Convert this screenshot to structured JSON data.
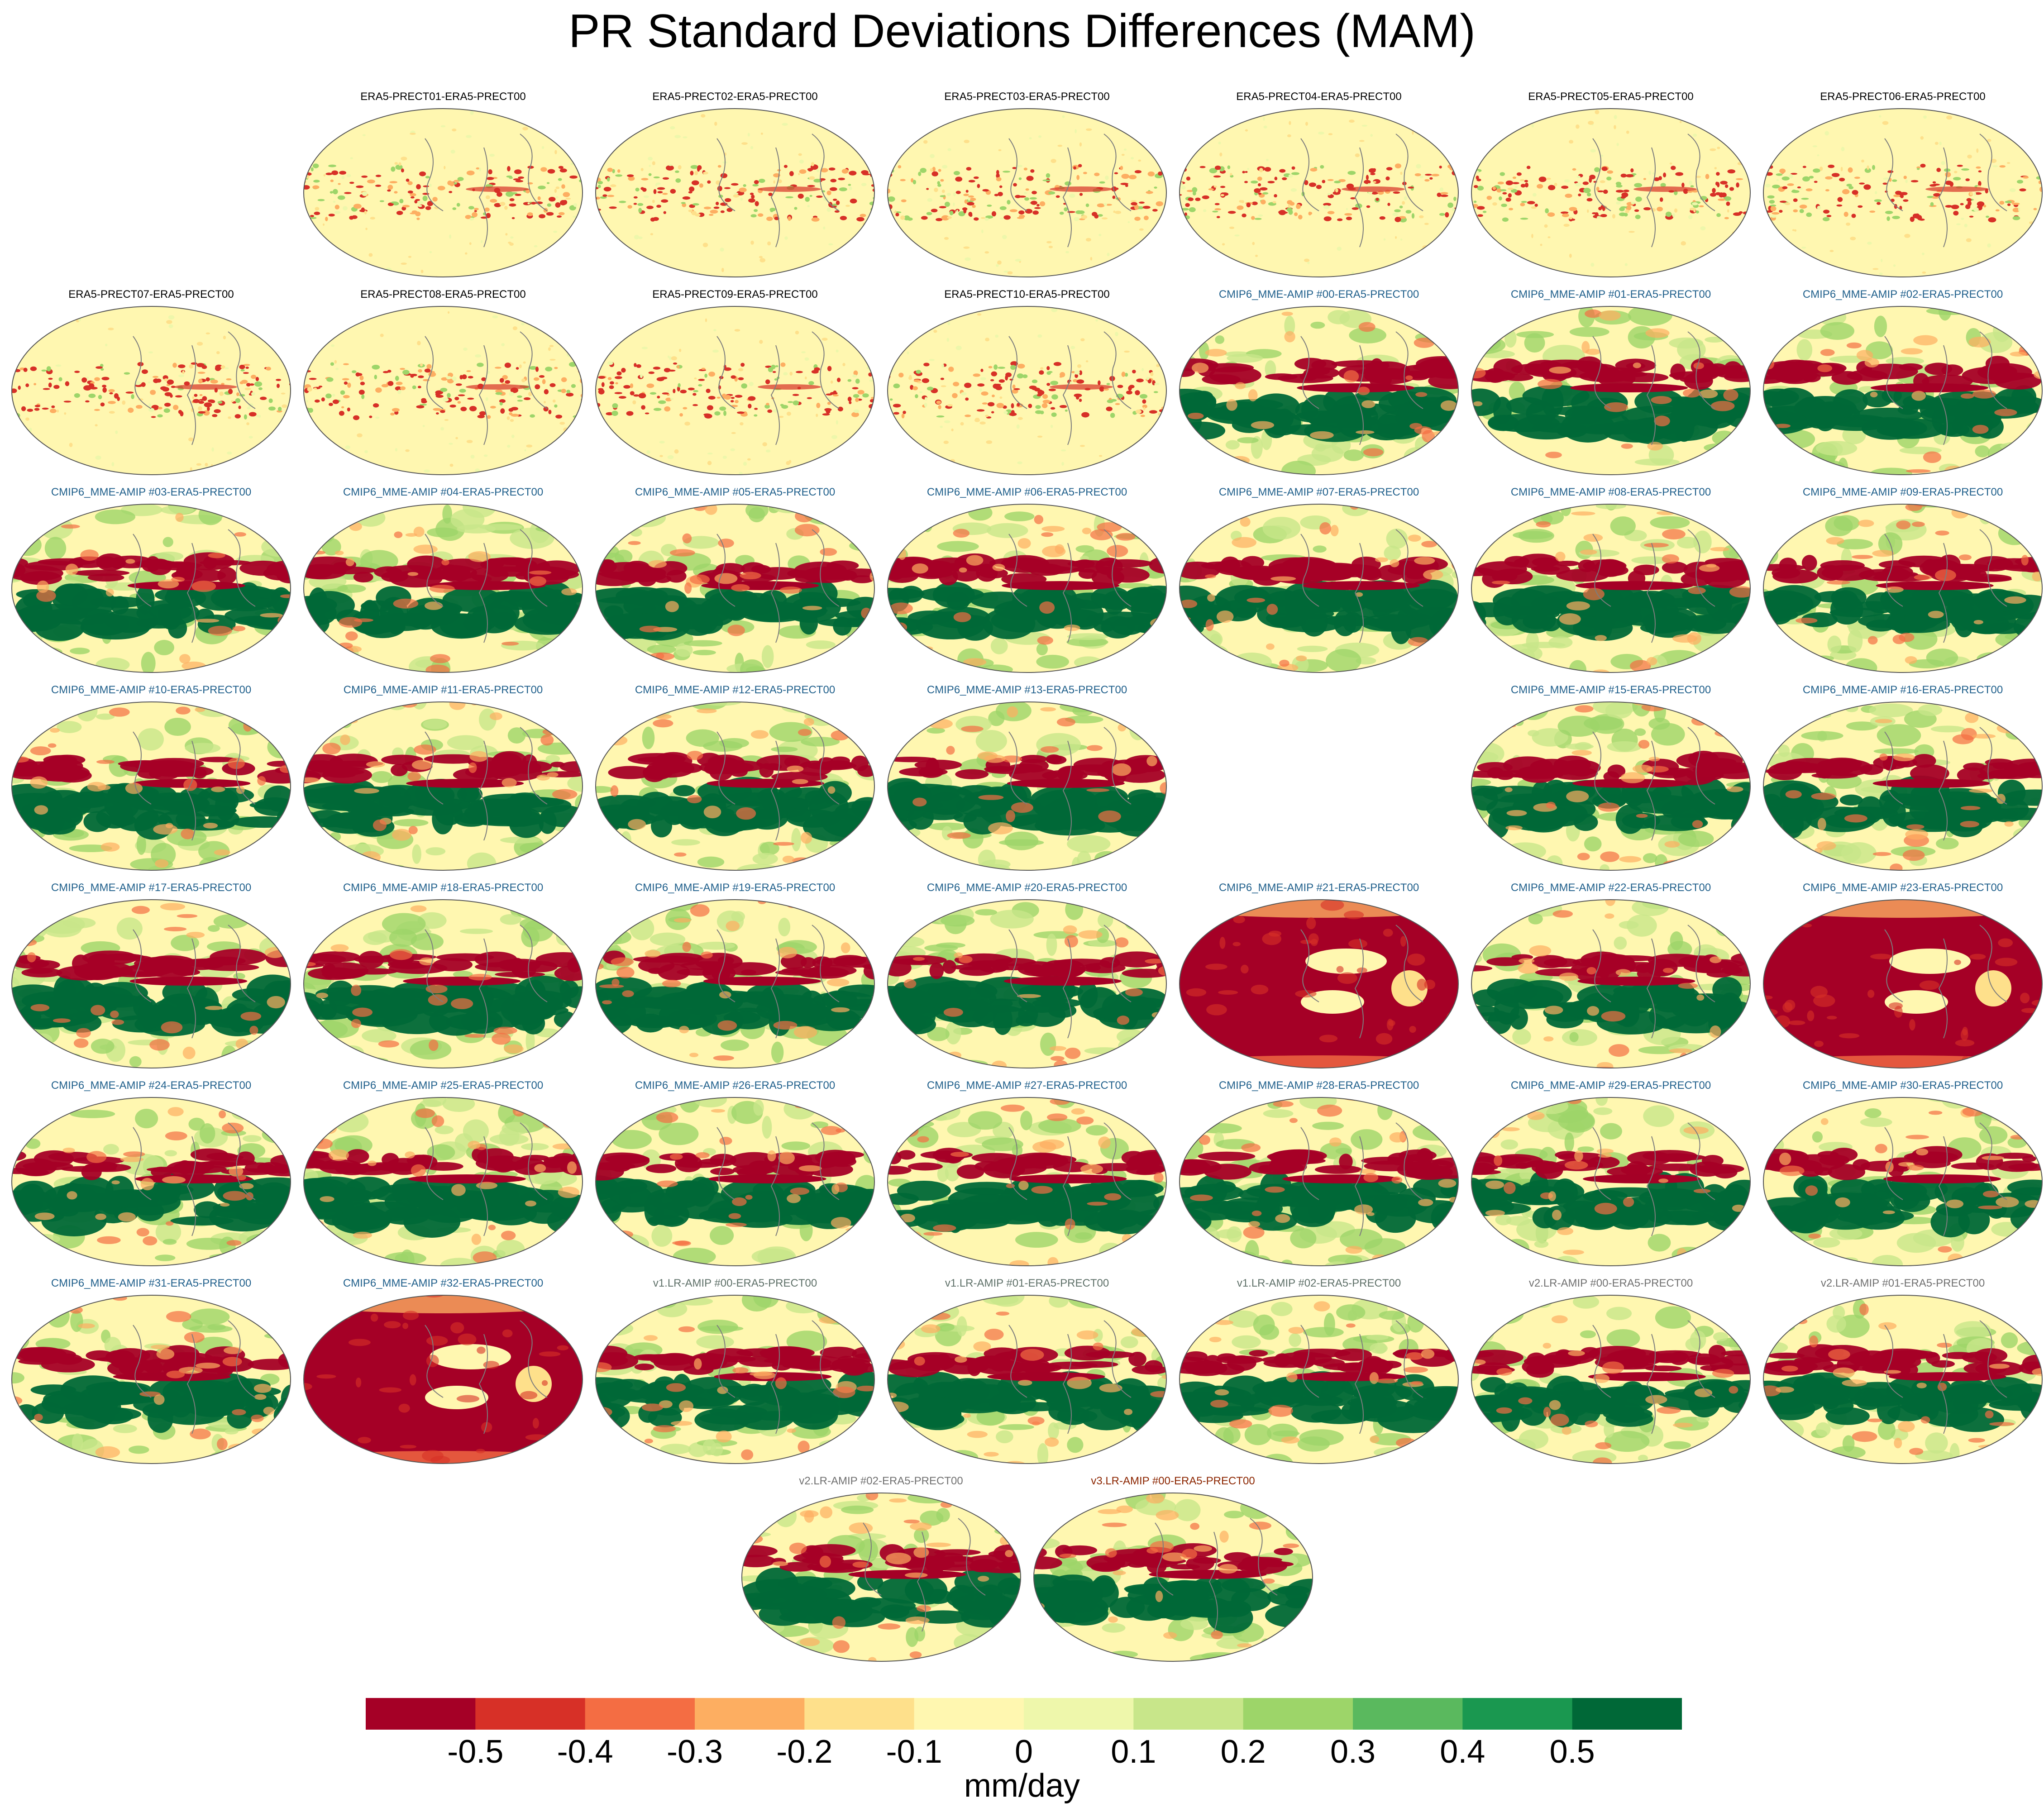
{
  "title": "PR Standard Deviations Differences (MAM)",
  "colorbar": {
    "units": "mm/day",
    "colors": [
      "#a50026",
      "#d73027",
      "#f46d43",
      "#fdae61",
      "#fee08b",
      "#fff7b0",
      "#eef7ab",
      "#c8e68a",
      "#9dd569",
      "#5ab95e",
      "#1a9850",
      "#006837"
    ],
    "ticks": [
      "-0.5",
      "-0.4",
      "-0.3",
      "-0.2",
      "-0.1",
      "0",
      "0.1",
      "0.2",
      "0.3",
      "0.4",
      "0.5"
    ]
  },
  "chart_data": {
    "type": "heatmap",
    "title": "PR Standard Deviations Differences (MAM)",
    "colorbar_label": "mm/day",
    "levels": [
      -0.5,
      -0.4,
      -0.3,
      -0.2,
      -0.1,
      0,
      0.1,
      0.2,
      0.3,
      0.4,
      0.5
    ],
    "panels": [
      {
        "label": "ERA5-PRECT01-ERA5-PRECT00",
        "group": "era5",
        "row": 0,
        "col": 1,
        "pattern": "era5"
      },
      {
        "label": "ERA5-PRECT02-ERA5-PRECT00",
        "group": "era5",
        "row": 0,
        "col": 2,
        "pattern": "era5"
      },
      {
        "label": "ERA5-PRECT03-ERA5-PRECT00",
        "group": "era5",
        "row": 0,
        "col": 3,
        "pattern": "era5"
      },
      {
        "label": "ERA5-PRECT04-ERA5-PRECT00",
        "group": "era5",
        "row": 0,
        "col": 4,
        "pattern": "era5"
      },
      {
        "label": "ERA5-PRECT05-ERA5-PRECT00",
        "group": "era5",
        "row": 0,
        "col": 5,
        "pattern": "era5"
      },
      {
        "label": "ERA5-PRECT06-ERA5-PRECT00",
        "group": "era5",
        "row": 0,
        "col": 6,
        "pattern": "era5"
      },
      {
        "label": "ERA5-PRECT07-ERA5-PRECT00",
        "group": "era5",
        "row": 1,
        "col": 0,
        "pattern": "era5"
      },
      {
        "label": "ERA5-PRECT08-ERA5-PRECT00",
        "group": "era5",
        "row": 1,
        "col": 1,
        "pattern": "era5"
      },
      {
        "label": "ERA5-PRECT09-ERA5-PRECT00",
        "group": "era5",
        "row": 1,
        "col": 2,
        "pattern": "era5"
      },
      {
        "label": "ERA5-PRECT10-ERA5-PRECT00",
        "group": "era5",
        "row": 1,
        "col": 3,
        "pattern": "era5"
      },
      {
        "label": "CMIP6_MME-AMIP  #00-ERA5-PRECT00",
        "group": "cmip6",
        "row": 1,
        "col": 4,
        "pattern": "model"
      },
      {
        "label": "CMIP6_MME-AMIP  #01-ERA5-PRECT00",
        "group": "cmip6",
        "row": 1,
        "col": 5,
        "pattern": "model"
      },
      {
        "label": "CMIP6_MME-AMIP  #02-ERA5-PRECT00",
        "group": "cmip6",
        "row": 1,
        "col": 6,
        "pattern": "model"
      },
      {
        "label": "CMIP6_MME-AMIP  #03-ERA5-PRECT00",
        "group": "cmip6",
        "row": 2,
        "col": 0,
        "pattern": "model"
      },
      {
        "label": "CMIP6_MME-AMIP  #04-ERA5-PRECT00",
        "group": "cmip6",
        "row": 2,
        "col": 1,
        "pattern": "model"
      },
      {
        "label": "CMIP6_MME-AMIP  #05-ERA5-PRECT00",
        "group": "cmip6",
        "row": 2,
        "col": 2,
        "pattern": "model"
      },
      {
        "label": "CMIP6_MME-AMIP  #06-ERA5-PRECT00",
        "group": "cmip6",
        "row": 2,
        "col": 3,
        "pattern": "model"
      },
      {
        "label": "CMIP6_MME-AMIP  #07-ERA5-PRECT00",
        "group": "cmip6",
        "row": 2,
        "col": 4,
        "pattern": "model"
      },
      {
        "label": "CMIP6_MME-AMIP  #08-ERA5-PRECT00",
        "group": "cmip6",
        "row": 2,
        "col": 5,
        "pattern": "model"
      },
      {
        "label": "CMIP6_MME-AMIP  #09-ERA5-PRECT00",
        "group": "cmip6",
        "row": 2,
        "col": 6,
        "pattern": "model"
      },
      {
        "label": "CMIP6_MME-AMIP  #10-ERA5-PRECT00",
        "group": "cmip6",
        "row": 3,
        "col": 0,
        "pattern": "model"
      },
      {
        "label": "CMIP6_MME-AMIP  #11-ERA5-PRECT00",
        "group": "cmip6",
        "row": 3,
        "col": 1,
        "pattern": "model"
      },
      {
        "label": "CMIP6_MME-AMIP  #12-ERA5-PRECT00",
        "group": "cmip6",
        "row": 3,
        "col": 2,
        "pattern": "model"
      },
      {
        "label": "CMIP6_MME-AMIP  #13-ERA5-PRECT00",
        "group": "cmip6",
        "row": 3,
        "col": 3,
        "pattern": "model"
      },
      {
        "label": "CMIP6_MME-AMIP  #15-ERA5-PRECT00",
        "group": "cmip6",
        "row": 3,
        "col": 5,
        "pattern": "model"
      },
      {
        "label": "CMIP6_MME-AMIP  #16-ERA5-PRECT00",
        "group": "cmip6",
        "row": 3,
        "col": 6,
        "pattern": "model"
      },
      {
        "label": "CMIP6_MME-AMIP  #17-ERA5-PRECT00",
        "group": "cmip6",
        "row": 4,
        "col": 0,
        "pattern": "model"
      },
      {
        "label": "CMIP6_MME-AMIP  #18-ERA5-PRECT00",
        "group": "cmip6",
        "row": 4,
        "col": 1,
        "pattern": "model"
      },
      {
        "label": "CMIP6_MME-AMIP  #19-ERA5-PRECT00",
        "group": "cmip6",
        "row": 4,
        "col": 2,
        "pattern": "model"
      },
      {
        "label": "CMIP6_MME-AMIP  #20-ERA5-PRECT00",
        "group": "cmip6",
        "row": 4,
        "col": 3,
        "pattern": "model"
      },
      {
        "label": "CMIP6_MME-AMIP  #21-ERA5-PRECT00",
        "group": "cmip6",
        "row": 4,
        "col": 4,
        "pattern": "red"
      },
      {
        "label": "CMIP6_MME-AMIP  #22-ERA5-PRECT00",
        "group": "cmip6",
        "row": 4,
        "col": 5,
        "pattern": "model"
      },
      {
        "label": "CMIP6_MME-AMIP  #23-ERA5-PRECT00",
        "group": "cmip6",
        "row": 4,
        "col": 6,
        "pattern": "red"
      },
      {
        "label": "CMIP6_MME-AMIP  #24-ERA5-PRECT00",
        "group": "cmip6",
        "row": 5,
        "col": 0,
        "pattern": "model"
      },
      {
        "label": "CMIP6_MME-AMIP  #25-ERA5-PRECT00",
        "group": "cmip6",
        "row": 5,
        "col": 1,
        "pattern": "model"
      },
      {
        "label": "CMIP6_MME-AMIP  #26-ERA5-PRECT00",
        "group": "cmip6",
        "row": 5,
        "col": 2,
        "pattern": "model"
      },
      {
        "label": "CMIP6_MME-AMIP  #27-ERA5-PRECT00",
        "group": "cmip6",
        "row": 5,
        "col": 3,
        "pattern": "model"
      },
      {
        "label": "CMIP6_MME-AMIP  #28-ERA5-PRECT00",
        "group": "cmip6",
        "row": 5,
        "col": 4,
        "pattern": "model"
      },
      {
        "label": "CMIP6_MME-AMIP  #29-ERA5-PRECT00",
        "group": "cmip6",
        "row": 5,
        "col": 5,
        "pattern": "model"
      },
      {
        "label": "CMIP6_MME-AMIP  #30-ERA5-PRECT00",
        "group": "cmip6",
        "row": 5,
        "col": 6,
        "pattern": "model"
      },
      {
        "label": "CMIP6_MME-AMIP  #31-ERA5-PRECT00",
        "group": "cmip6",
        "row": 6,
        "col": 0,
        "pattern": "model"
      },
      {
        "label": "CMIP6_MME-AMIP  #32-ERA5-PRECT00",
        "group": "cmip6",
        "row": 6,
        "col": 1,
        "pattern": "red"
      },
      {
        "label": "v1.LR-AMIP  #00-ERA5-PRECT00",
        "group": "v1",
        "row": 6,
        "col": 2,
        "pattern": "model"
      },
      {
        "label": "v1.LR-AMIP  #01-ERA5-PRECT00",
        "group": "v1",
        "row": 6,
        "col": 3,
        "pattern": "model"
      },
      {
        "label": "v1.LR-AMIP  #02-ERA5-PRECT00",
        "group": "v1",
        "row": 6,
        "col": 4,
        "pattern": "model"
      },
      {
        "label": "v2.LR-AMIP  #00-ERA5-PRECT00",
        "group": "v2",
        "row": 6,
        "col": 5,
        "pattern": "model"
      },
      {
        "label": "v2.LR-AMIP  #01-ERA5-PRECT00",
        "group": "v2",
        "row": 6,
        "col": 6,
        "pattern": "model"
      },
      {
        "label": "v2.LR-AMIP  #02-ERA5-PRECT00",
        "group": "v2",
        "row": 7,
        "col": 2.5,
        "pattern": "model"
      },
      {
        "label": "v3.LR-AMIP  #00-ERA5-PRECT00",
        "group": "v3",
        "row": 7,
        "col": 3.5,
        "pattern": "model"
      }
    ]
  }
}
